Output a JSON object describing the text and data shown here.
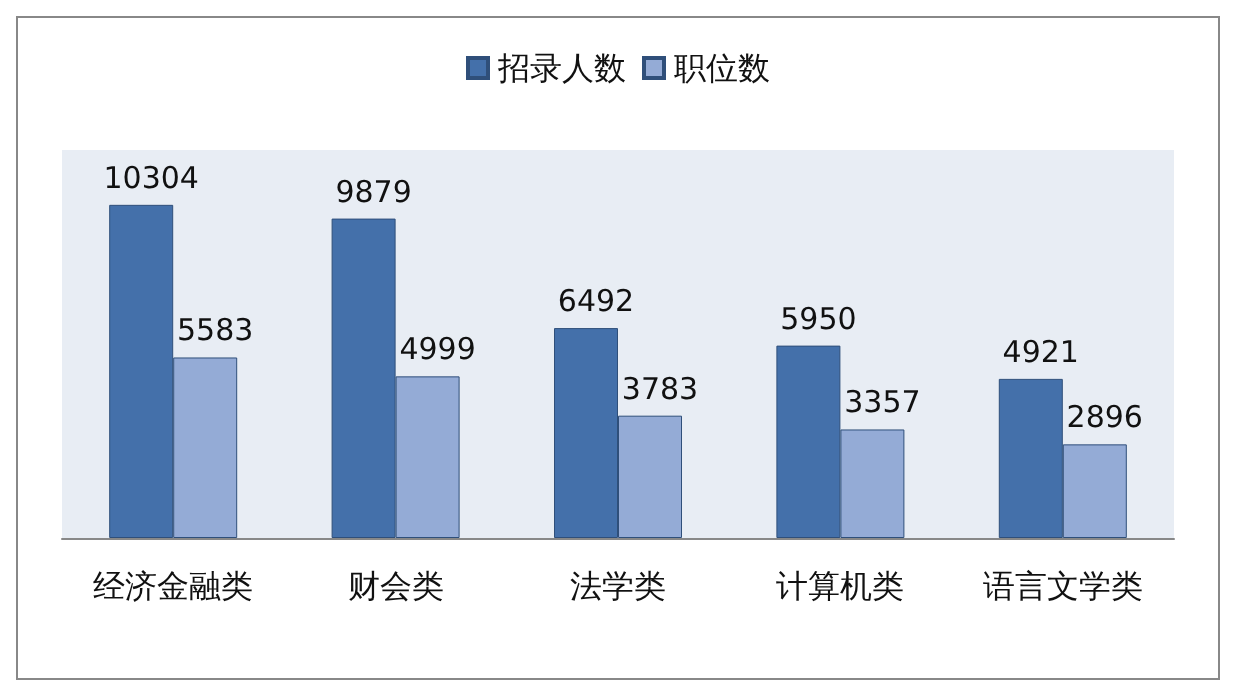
{
  "chart_data": {
    "type": "bar",
    "categories": [
      "经济金融类",
      "财会类",
      "法学类",
      "计算机类",
      "语言文学类"
    ],
    "series": [
      {
        "name": "招录人数",
        "color": "#4470aa",
        "values": [
          10304,
          9879,
          6492,
          5950,
          4921
        ]
      },
      {
        "name": "职位数",
        "color": "#94abd6",
        "values": [
          5583,
          4999,
          3783,
          3357,
          2896
        ]
      }
    ],
    "data_labels": true,
    "legend": "top"
  }
}
